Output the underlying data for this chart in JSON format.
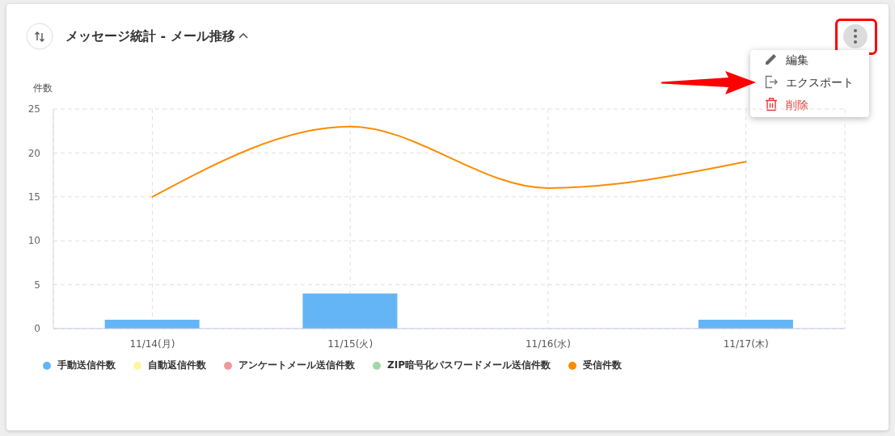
{
  "chart_data": {
    "type": "bar",
    "title": "メッセージ統計 - メール推移",
    "ylabel": "件数",
    "categories": [
      "11/14(月)",
      "11/15(火)",
      "11/16(水)",
      "11/17(木)"
    ],
    "series": [
      {
        "name": "手動送信件数",
        "color": "#64b5f6",
        "values": [
          1,
          4,
          0,
          1
        ]
      },
      {
        "name": "自動返信件数",
        "color": "#fff59d",
        "values": [
          0,
          0,
          0,
          0
        ]
      },
      {
        "name": "アンケートメール送信件数",
        "color": "#ef9a9a",
        "values": [
          0,
          0,
          0,
          0
        ]
      },
      {
        "name": "ZIP暗号化パスワードメール送信件数",
        "color": "#a5d6a7",
        "values": [
          0,
          0,
          0,
          0
        ]
      },
      {
        "name": "受信件数",
        "type": "line",
        "color": "#fb8c00",
        "values": [
          15,
          23,
          16,
          19
        ]
      }
    ],
    "stacked": true,
    "ylim": [
      0,
      25
    ],
    "yticks": [
      0,
      5,
      10,
      15,
      20,
      25
    ],
    "grid": true,
    "legend": "bottom left",
    "marker": "none",
    "line_style": "solid",
    "annotations": [
      "編集",
      "エクスポート",
      "削除"
    ]
  }
}
